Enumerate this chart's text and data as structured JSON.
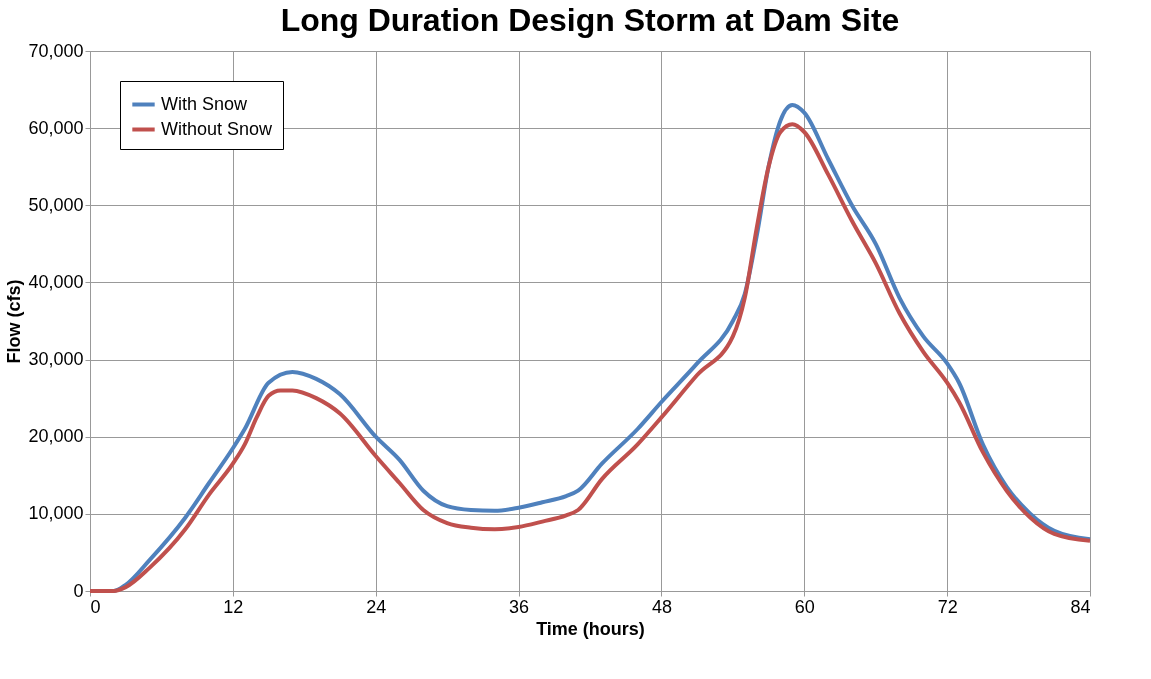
{
  "chart_data": {
    "type": "line",
    "title": "Long Duration Design Storm at Dam Site",
    "xlabel": "Time (hours)",
    "ylabel": "Flow (cfs)",
    "xlim": [
      0,
      84
    ],
    "xticks": [
      0,
      12,
      24,
      36,
      48,
      60,
      72,
      84
    ],
    "ylim": [
      0,
      70000
    ],
    "yticks": [
      0,
      {
        "value": 10000,
        "label": "10,000"
      },
      {
        "value": 20000,
        "label": "20,000"
      },
      {
        "value": 30000,
        "label": "30,000"
      },
      {
        "value": 40000,
        "label": "40,000"
      },
      {
        "value": 50000,
        "label": "50,000"
      },
      {
        "value": 60000,
        "label": "60,000"
      },
      {
        "value": 70000,
        "label": "70,000"
      }
    ],
    "grid": true,
    "legend": "top left",
    "marker": "none",
    "line_style": "solid",
    "series": [
      {
        "name": "With Snow",
        "color": "#4f81bd",
        "x": [
          0,
          2,
          3,
          5,
          8,
          10,
          12,
          13,
          15,
          17,
          19,
          21,
          24,
          26,
          28,
          30,
          32,
          34,
          36,
          38,
          40,
          41,
          43,
          46,
          48,
          51,
          54,
          55,
          56,
          57,
          58,
          59,
          60,
          62,
          64,
          66,
          68,
          70,
          72,
          73,
          75,
          77,
          79,
          81,
          84
        ],
        "values": [
          0,
          0,
          800,
          4000,
          9500,
          14000,
          18500,
          21000,
          27000,
          28400,
          27500,
          25500,
          20000,
          17000,
          13000,
          11000,
          10500,
          10400,
          10800,
          11500,
          12300,
          13000,
          16500,
          21000,
          24500,
          29500,
          35000,
          38500,
          46000,
          55000,
          61000,
          63000,
          62000,
          56000,
          50000,
          45000,
          38000,
          33000,
          29500,
          27000,
          19000,
          13500,
          10000,
          7800,
          6700
        ]
      },
      {
        "name": "Without Snow",
        "color": "#c0504d",
        "x": [
          0,
          2,
          3,
          5,
          8,
          10,
          12,
          13,
          14,
          15,
          16,
          17,
          19,
          21,
          24,
          26,
          28,
          30,
          32,
          34,
          36,
          38,
          40,
          41,
          43,
          46,
          48,
          51,
          54,
          55,
          56,
          57,
          58,
          59,
          60,
          62,
          64,
          66,
          68,
          70,
          72,
          73,
          75,
          77,
          79,
          81,
          84
        ],
        "values": [
          0,
          0,
          500,
          3000,
          8000,
          12500,
          16500,
          19000,
          22500,
          25300,
          26000,
          26000,
          25000,
          23000,
          17500,
          14000,
          10500,
          8800,
          8200,
          8000,
          8300,
          9000,
          9800,
          10500,
          14500,
          19000,
          22500,
          28000,
          33000,
          38000,
          47000,
          55000,
          59500,
          60500,
          59500,
          54000,
          48000,
          42500,
          36000,
          31000,
          27000,
          24500,
          18000,
          13000,
          9500,
          7400,
          6500
        ]
      }
    ]
  }
}
